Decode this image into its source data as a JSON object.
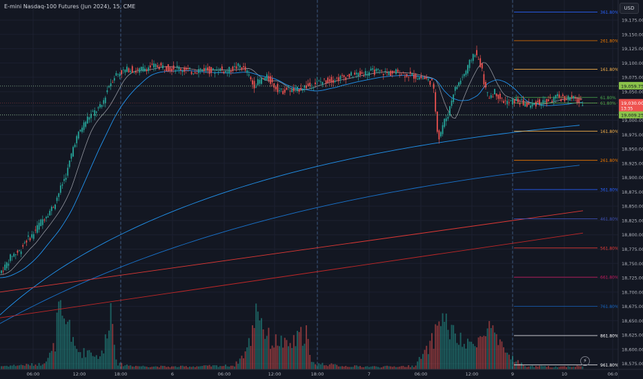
{
  "header": {
    "symbol_title": "E-mini Nasdaq-100 Futures (Jun 2024), 15, CME",
    "currency": "USD"
  },
  "chart_data": {
    "type": "candlestick",
    "title": "E-mini Nasdaq-100 Futures (Jun 2024), 15, CME",
    "ylim": [
      18565,
      19210
    ],
    "y_ticks": [
      19175,
      19150,
      19125,
      19100,
      19075,
      19050,
      19025,
      19000,
      18975,
      18950,
      18925,
      18900,
      18875,
      18850,
      18825,
      18800,
      18775,
      18750,
      18725,
      18700,
      18675,
      18650,
      18625,
      18600,
      18575
    ],
    "x_ticks": [
      "06:00",
      "12:00",
      "18:00",
      "6",
      "06:00",
      "12:00",
      "18:00",
      "7",
      "06:00",
      "12:00",
      "9",
      "10",
      "06:0"
    ],
    "session_separators": [
      "18:00",
      "18:00",
      "9"
    ],
    "price_labels": {
      "upper_line": "19,059.75",
      "current": "19,030.00",
      "countdown": "13:35",
      "lower_line": "19,009.25"
    },
    "fib_levels_upper": [
      {
        "label": "361.80%",
        "price": 19189,
        "color": "#2962ff"
      },
      {
        "label": "261.80%",
        "price": 19139,
        "color": "#f57c00"
      },
      {
        "label": "161.80%",
        "price": 19089,
        "color": "#ffb74d"
      },
      {
        "label": "61.80%",
        "price": 19040,
        "color": "#4caf50"
      },
      {
        "label": "61.80%",
        "price": 19030,
        "color": "#4caf50"
      }
    ],
    "fib_levels_lower": [
      {
        "label": "161.80%",
        "price": 18981,
        "color": "#ffb74d"
      },
      {
        "label": "261.80%",
        "price": 18930,
        "color": "#f57c00"
      },
      {
        "label": "361.80%",
        "price": 18879,
        "color": "#2962ff"
      },
      {
        "label": "461.80%",
        "price": 18828,
        "color": "#3f51b5"
      },
      {
        "label": "561.80%",
        "price": 18777,
        "color": "#e53935"
      },
      {
        "label": "661.80%",
        "price": 18726,
        "color": "#c2185b"
      },
      {
        "label": "761.80%",
        "price": 18675,
        "color": "#1565c0"
      },
      {
        "label": "861.80%",
        "price": 18624,
        "color": "#ffffff"
      },
      {
        "label": "961.80%",
        "price": 18573,
        "color": "#ffffff"
      }
    ],
    "price_series": [
      [
        0,
        18730
      ],
      [
        10,
        18745
      ],
      [
        20,
        18765
      ],
      [
        30,
        18770
      ],
      [
        40,
        18790
      ],
      [
        50,
        18800
      ],
      [
        60,
        18820
      ],
      [
        70,
        18835
      ],
      [
        80,
        18850
      ],
      [
        90,
        18880
      ],
      [
        100,
        18910
      ],
      [
        110,
        18960
      ],
      [
        120,
        18985
      ],
      [
        130,
        19005
      ],
      [
        140,
        19015
      ],
      [
        150,
        19025
      ],
      [
        160,
        19060
      ],
      [
        170,
        19080
      ],
      [
        180,
        19085
      ],
      [
        190,
        19090
      ],
      [
        200,
        19085
      ],
      [
        210,
        19090
      ],
      [
        220,
        19093
      ],
      [
        230,
        19095
      ],
      [
        240,
        19093
      ],
      [
        250,
        19090
      ],
      [
        260,
        19092
      ],
      [
        270,
        19088
      ],
      [
        280,
        19085
      ],
      [
        290,
        19088
      ],
      [
        300,
        19090
      ],
      [
        310,
        19085
      ],
      [
        320,
        19090
      ],
      [
        330,
        19085
      ],
      [
        340,
        19090
      ],
      [
        350,
        19095
      ],
      [
        360,
        19085
      ],
      [
        370,
        19060
      ],
      [
        380,
        19070
      ],
      [
        390,
        19075
      ],
      [
        400,
        19060
      ],
      [
        410,
        19050
      ],
      [
        420,
        19055
      ],
      [
        430,
        19050
      ],
      [
        440,
        19058
      ],
      [
        450,
        19060
      ],
      [
        460,
        19065
      ],
      [
        470,
        19068
      ],
      [
        480,
        19070
      ],
      [
        490,
        19072
      ],
      [
        500,
        19075
      ],
      [
        510,
        19078
      ],
      [
        520,
        19080
      ],
      [
        530,
        19082
      ],
      [
        540,
        19085
      ],
      [
        550,
        19085
      ],
      [
        560,
        19083
      ],
      [
        570,
        19082
      ],
      [
        580,
        19085
      ],
      [
        590,
        19080
      ],
      [
        600,
        19078
      ],
      [
        610,
        19075
      ],
      [
        620,
        19072
      ],
      [
        630,
        19065
      ],
      [
        638,
        18965
      ],
      [
        645,
        18995
      ],
      [
        652,
        19010
      ],
      [
        660,
        19050
      ],
      [
        670,
        19070
      ],
      [
        680,
        19090
      ],
      [
        690,
        19120
      ],
      [
        700,
        19095
      ],
      [
        705,
        19060
      ],
      [
        710,
        19040
      ],
      [
        720,
        19050
      ],
      [
        730,
        19035
      ],
      [
        740,
        19030
      ],
      [
        750,
        19035
      ],
      [
        760,
        19030
      ],
      [
        770,
        19025
      ],
      [
        780,
        19030
      ],
      [
        790,
        19032
      ],
      [
        800,
        19035
      ],
      [
        810,
        19040
      ],
      [
        820,
        19038
      ],
      [
        830,
        19040
      ],
      [
        845,
        19030
      ]
    ],
    "volume_series": [
      [
        0,
        0.05
      ],
      [
        20,
        0.06
      ],
      [
        40,
        0.07
      ],
      [
        60,
        0.08
      ],
      [
        75,
        0.25
      ],
      [
        80,
        0.4
      ],
      [
        85,
        0.95
      ],
      [
        90,
        0.7
      ],
      [
        95,
        0.6
      ],
      [
        100,
        0.85
      ],
      [
        105,
        0.4
      ],
      [
        110,
        0.3
      ],
      [
        120,
        0.25
      ],
      [
        130,
        0.3
      ],
      [
        140,
        0.2
      ],
      [
        150,
        0.25
      ],
      [
        160,
        1.0
      ],
      [
        170,
        0.08
      ],
      [
        200,
        0.05
      ],
      [
        250,
        0.04
      ],
      [
        300,
        0.05
      ],
      [
        340,
        0.06
      ],
      [
        355,
        0.25
      ],
      [
        365,
        0.5
      ],
      [
        372,
        1.1
      ],
      [
        378,
        0.8
      ],
      [
        385,
        0.55
      ],
      [
        395,
        0.4
      ],
      [
        405,
        0.45
      ],
      [
        415,
        0.35
      ],
      [
        425,
        0.4
      ],
      [
        435,
        0.5
      ],
      [
        445,
        0.6
      ],
      [
        450,
        0.1
      ],
      [
        500,
        0.05
      ],
      [
        550,
        0.04
      ],
      [
        600,
        0.05
      ],
      [
        620,
        0.3
      ],
      [
        630,
        0.5
      ],
      [
        638,
        0.85
      ],
      [
        645,
        0.75
      ],
      [
        652,
        0.6
      ],
      [
        660,
        0.5
      ],
      [
        670,
        0.4
      ],
      [
        680,
        0.35
      ],
      [
        690,
        0.5
      ],
      [
        700,
        0.45
      ],
      [
        710,
        0.7
      ],
      [
        720,
        0.4
      ],
      [
        730,
        0.3
      ],
      [
        740,
        0.2
      ],
      [
        760,
        0.05
      ],
      [
        800,
        0.04
      ],
      [
        845,
        0.05
      ]
    ]
  }
}
